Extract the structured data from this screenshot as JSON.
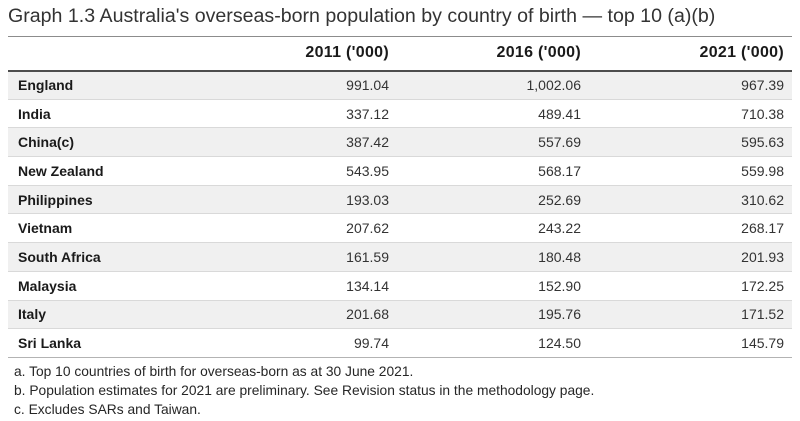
{
  "title": "Graph 1.3 Australia's overseas-born population by country of birth — top 10 (a)(b)",
  "table": {
    "columns": [
      "2011 ('000)",
      "2016 ('000)",
      "2021 ('000)"
    ],
    "rows": [
      {
        "country": "England",
        "values": [
          "991.04",
          "1,002.06",
          "967.39"
        ]
      },
      {
        "country": "India",
        "values": [
          "337.12",
          "489.41",
          "710.38"
        ]
      },
      {
        "country": "China(c)",
        "values": [
          "387.42",
          "557.69",
          "595.63"
        ]
      },
      {
        "country": "New Zealand",
        "values": [
          "543.95",
          "568.17",
          "559.98"
        ]
      },
      {
        "country": "Philippines",
        "values": [
          "193.03",
          "252.69",
          "310.62"
        ]
      },
      {
        "country": "Vietnam",
        "values": [
          "207.62",
          "243.22",
          "268.17"
        ]
      },
      {
        "country": "South Africa",
        "values": [
          "161.59",
          "180.48",
          "201.93"
        ]
      },
      {
        "country": "Malaysia",
        "values": [
          "134.14",
          "152.90",
          "172.25"
        ]
      },
      {
        "country": "Italy",
        "values": [
          "201.68",
          "195.76",
          "171.52"
        ]
      },
      {
        "country": "Sri Lanka",
        "values": [
          "99.74",
          "124.50",
          "145.79"
        ]
      }
    ]
  },
  "footnotes": [
    "a. Top 10 countries of birth for overseas-born as at 30 June 2021.",
    "b. Population estimates for 2021 are preliminary. See Revision status in the methodology page.",
    "c. Excludes SARs and Taiwan."
  ]
}
